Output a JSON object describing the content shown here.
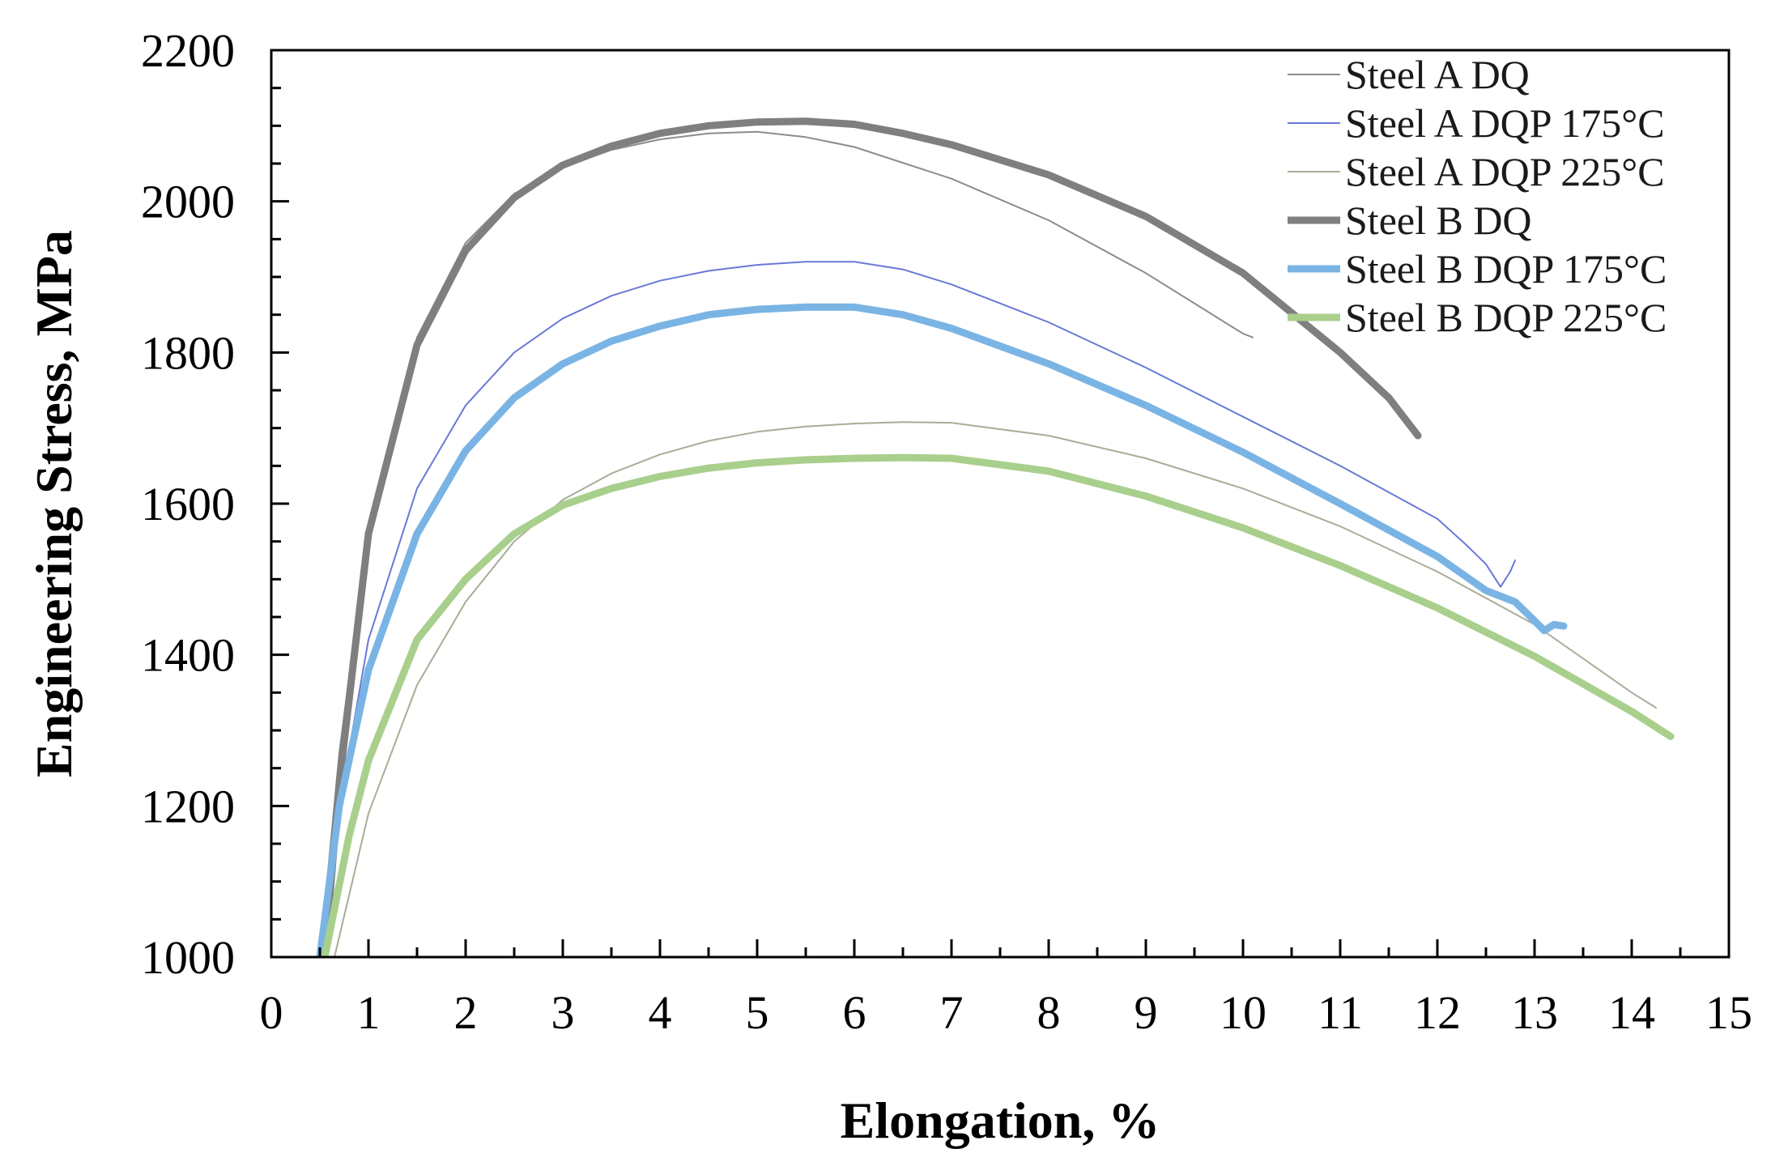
{
  "chart_data": {
    "type": "line",
    "title": "",
    "xlabel": "Elongation, %",
    "ylabel": "Engineering Stress, MPa",
    "xlim": [
      0,
      15
    ],
    "ylim": [
      1000,
      2200
    ],
    "xticks": [
      "0",
      "1",
      "2",
      "3",
      "4",
      "5",
      "6",
      "7",
      "8",
      "9",
      "10",
      "11",
      "12",
      "13",
      "14",
      "15"
    ],
    "yticks": [
      "1000",
      "1200",
      "1400",
      "1600",
      "1800",
      "2000",
      "2200"
    ],
    "legend_position": "top-right",
    "series": [
      {
        "name": "Steel A DQ",
        "color": "#8c8c8c",
        "width": "thin",
        "points": [
          [
            0.5,
            1000
          ],
          [
            0.7,
            1270
          ],
          [
            1.0,
            1570
          ],
          [
            1.5,
            1820
          ],
          [
            2.0,
            1945
          ],
          [
            2.5,
            2010
          ],
          [
            3.0,
            2045
          ],
          [
            3.5,
            2068
          ],
          [
            4.0,
            2082
          ],
          [
            4.5,
            2090
          ],
          [
            5.0,
            2092
          ],
          [
            5.5,
            2085
          ],
          [
            6.0,
            2072
          ],
          [
            7.0,
            2030
          ],
          [
            8.0,
            1975
          ],
          [
            9.0,
            1905
          ],
          [
            10.0,
            1825
          ],
          [
            10.1,
            1820
          ]
        ]
      },
      {
        "name": "Steel A DQP 175°C",
        "color": "#6a78d6",
        "width": "thin",
        "points": [
          [
            0.5,
            1000
          ],
          [
            0.7,
            1200
          ],
          [
            1.0,
            1420
          ],
          [
            1.5,
            1620
          ],
          [
            2.0,
            1730
          ],
          [
            2.5,
            1800
          ],
          [
            3.0,
            1845
          ],
          [
            3.5,
            1875
          ],
          [
            4.0,
            1895
          ],
          [
            4.5,
            1908
          ],
          [
            5.0,
            1916
          ],
          [
            5.5,
            1920
          ],
          [
            6.0,
            1920
          ],
          [
            6.5,
            1910
          ],
          [
            7.0,
            1890
          ],
          [
            8.0,
            1840
          ],
          [
            9.0,
            1780
          ],
          [
            10.0,
            1715
          ],
          [
            11.0,
            1650
          ],
          [
            12.0,
            1580
          ],
          [
            12.3,
            1545
          ],
          [
            12.5,
            1520
          ],
          [
            12.65,
            1490
          ],
          [
            12.75,
            1510
          ],
          [
            12.8,
            1525
          ]
        ]
      },
      {
        "name": "Steel A DQP 225°C",
        "color": "#a8ad98",
        "width": "thin",
        "points": [
          [
            0.65,
            1000
          ],
          [
            1.0,
            1190
          ],
          [
            1.5,
            1360
          ],
          [
            2.0,
            1470
          ],
          [
            2.5,
            1550
          ],
          [
            3.0,
            1605
          ],
          [
            3.5,
            1640
          ],
          [
            4.0,
            1665
          ],
          [
            4.5,
            1683
          ],
          [
            5.0,
            1695
          ],
          [
            5.5,
            1702
          ],
          [
            6.0,
            1706
          ],
          [
            6.5,
            1708
          ],
          [
            7.0,
            1707
          ],
          [
            8.0,
            1690
          ],
          [
            9.0,
            1660
          ],
          [
            10.0,
            1620
          ],
          [
            11.0,
            1570
          ],
          [
            12.0,
            1510
          ],
          [
            13.0,
            1440
          ],
          [
            14.0,
            1350
          ],
          [
            14.25,
            1330
          ]
        ]
      },
      {
        "name": "Steel B DQ",
        "color": "#7f7f7f",
        "width": "thick",
        "points": [
          [
            0.55,
            1000
          ],
          [
            0.7,
            1230
          ],
          [
            1.0,
            1560
          ],
          [
            1.5,
            1810
          ],
          [
            2.0,
            1935
          ],
          [
            2.5,
            2005
          ],
          [
            3.0,
            2048
          ],
          [
            3.5,
            2073
          ],
          [
            4.0,
            2090
          ],
          [
            4.5,
            2100
          ],
          [
            5.0,
            2105
          ],
          [
            5.5,
            2106
          ],
          [
            6.0,
            2102
          ],
          [
            6.5,
            2090
          ],
          [
            7.0,
            2075
          ],
          [
            8.0,
            2035
          ],
          [
            9.0,
            1980
          ],
          [
            10.0,
            1905
          ],
          [
            11.0,
            1800
          ],
          [
            11.5,
            1740
          ],
          [
            11.8,
            1690
          ]
        ]
      },
      {
        "name": "Steel B DQP 175°C",
        "color": "#7ab4e4",
        "width": "thick",
        "points": [
          [
            0.5,
            1000
          ],
          [
            0.7,
            1200
          ],
          [
            1.0,
            1380
          ],
          [
            1.5,
            1560
          ],
          [
            2.0,
            1670
          ],
          [
            2.5,
            1740
          ],
          [
            3.0,
            1785
          ],
          [
            3.5,
            1815
          ],
          [
            4.0,
            1835
          ],
          [
            4.5,
            1850
          ],
          [
            5.0,
            1857
          ],
          [
            5.5,
            1860
          ],
          [
            6.0,
            1860
          ],
          [
            6.5,
            1850
          ],
          [
            7.0,
            1832
          ],
          [
            8.0,
            1785
          ],
          [
            9.0,
            1730
          ],
          [
            10.0,
            1668
          ],
          [
            11.0,
            1600
          ],
          [
            12.0,
            1530
          ],
          [
            12.5,
            1485
          ],
          [
            12.8,
            1470
          ],
          [
            13.0,
            1445
          ],
          [
            13.1,
            1432
          ],
          [
            13.2,
            1440
          ],
          [
            13.3,
            1438
          ]
        ]
      },
      {
        "name": "Steel B DQP 225°C",
        "color": "#a9cf8c",
        "width": "thick",
        "points": [
          [
            0.55,
            1000
          ],
          [
            0.8,
            1160
          ],
          [
            1.0,
            1260
          ],
          [
            1.5,
            1420
          ],
          [
            2.0,
            1500
          ],
          [
            2.5,
            1560
          ],
          [
            3.0,
            1598
          ],
          [
            3.5,
            1620
          ],
          [
            4.0,
            1636
          ],
          [
            4.5,
            1647
          ],
          [
            5.0,
            1654
          ],
          [
            5.5,
            1658
          ],
          [
            6.0,
            1660
          ],
          [
            6.5,
            1661
          ],
          [
            7.0,
            1660
          ],
          [
            8.0,
            1643
          ],
          [
            9.0,
            1610
          ],
          [
            10.0,
            1568
          ],
          [
            11.0,
            1518
          ],
          [
            12.0,
            1462
          ],
          [
            13.0,
            1398
          ],
          [
            14.0,
            1325
          ],
          [
            14.4,
            1292
          ]
        ]
      }
    ]
  }
}
